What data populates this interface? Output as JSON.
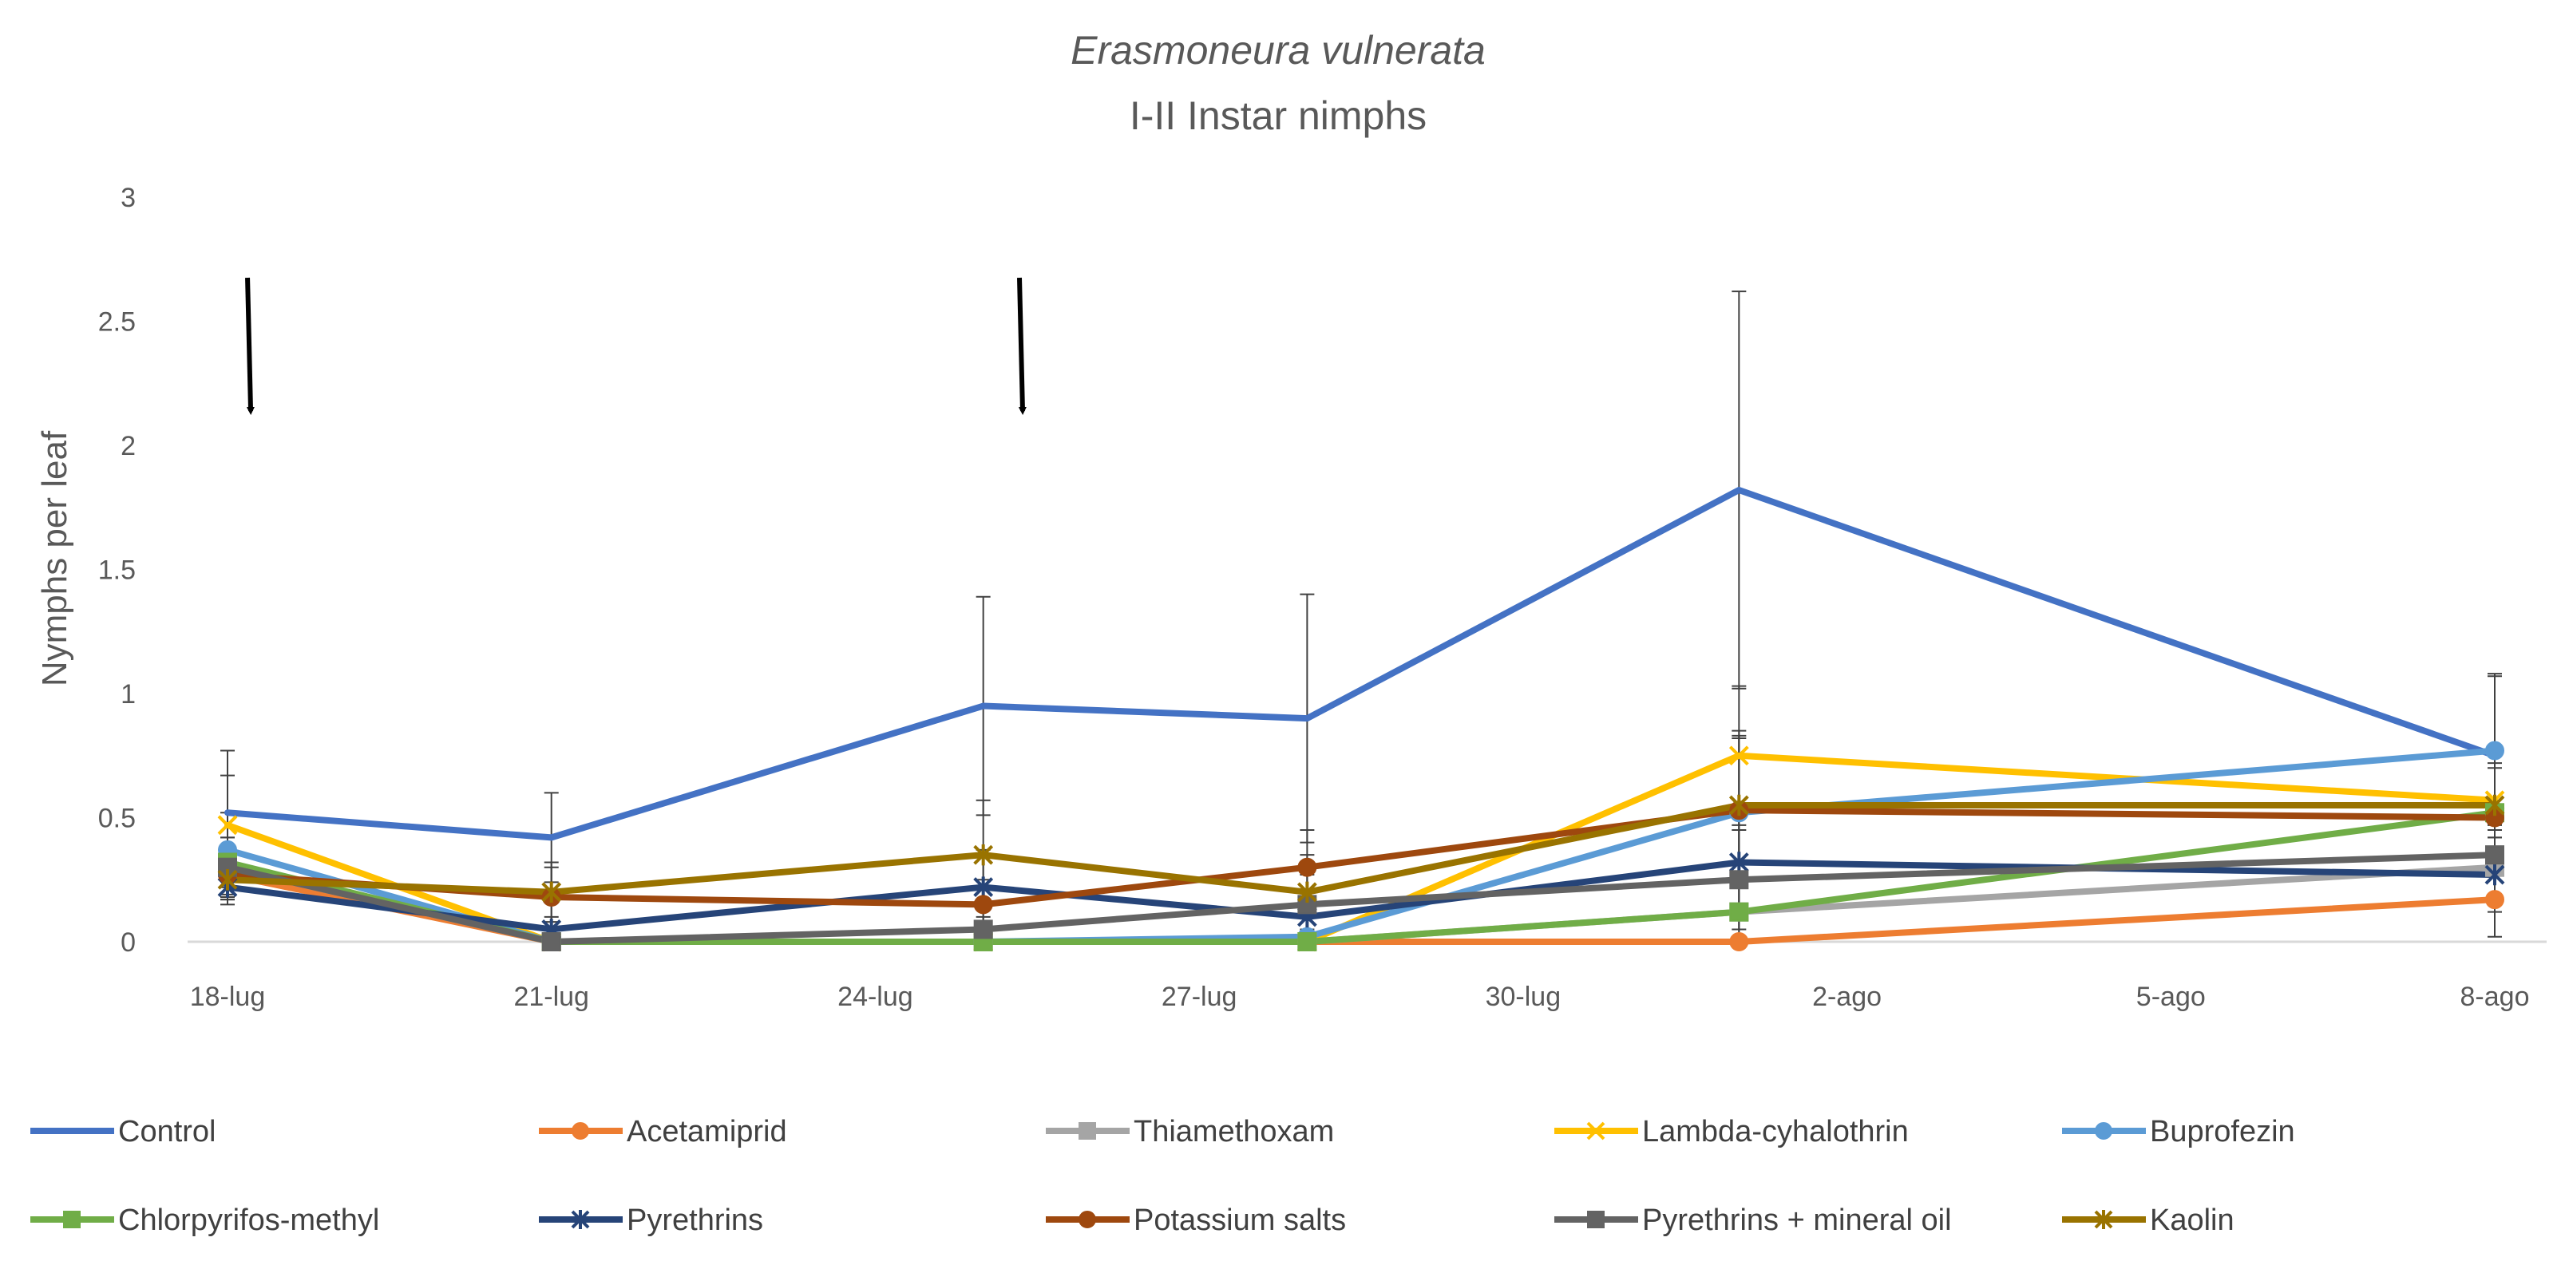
{
  "chart_data": {
    "type": "line",
    "title": "Erasmoneura vulnerata",
    "subtitle": "I-II Instar nimphs",
    "xlabel": "",
    "ylabel": "Nymphs per leaf",
    "ylim": [
      0,
      3
    ],
    "y_ticks": [
      0,
      0.5,
      1,
      1.5,
      2,
      2.5,
      3
    ],
    "y_tick_labels": [
      "0",
      "0.5",
      "1",
      "1.5",
      "2",
      "2.5",
      "3"
    ],
    "x_day_range": [
      0,
      21
    ],
    "x_ticks": [
      0,
      3,
      6,
      9,
      12,
      15,
      18,
      21
    ],
    "x_tick_labels": [
      "18-lug",
      "21-lug",
      "24-lug",
      "27-lug",
      "30-lug",
      "2-ago",
      "5-ago",
      "8-ago"
    ],
    "sample_days": [
      0,
      3,
      7,
      10,
      14,
      21
    ],
    "grid": false,
    "legend_position": "bottom",
    "treatment_arrow_days": [
      0.2,
      7.35
    ],
    "series": [
      {
        "name": "Control",
        "color": "#4472C4",
        "marker": "none",
        "values": [
          0.52,
          0.42,
          0.95,
          0.9,
          1.82,
          0.75
        ],
        "error": [
          0.25,
          0.18,
          0.44,
          0.5,
          0.8,
          0.33
        ]
      },
      {
        "name": "Acetamiprid",
        "color": "#ED7D31",
        "marker": "circle",
        "values": [
          0.27,
          0.0,
          0.0,
          0.0,
          0.0,
          0.17
        ],
        "error": [
          0.08,
          0.0,
          0.0,
          0.0,
          0.0,
          0.15
        ]
      },
      {
        "name": "Thiamethoxam",
        "color": "#A5A5A5",
        "marker": "square",
        "values": [
          0.3,
          0.0,
          0.0,
          0.0,
          0.12,
          0.3
        ],
        "error": [
          0.08,
          0.0,
          0.0,
          0.0,
          0.12,
          0.15
        ]
      },
      {
        "name": "Lambda-cyhalothrin",
        "color": "#FFC000",
        "marker": "x",
        "values": [
          0.47,
          0.0,
          0.0,
          0.0,
          0.75,
          0.57
        ],
        "error": [
          0.2,
          0.0,
          0.0,
          0.0,
          0.28,
          0.2
        ]
      },
      {
        "name": "Buprofezin",
        "color": "#5B9BD5",
        "marker": "circle",
        "values": [
          0.37,
          0.0,
          0.0,
          0.02,
          0.52,
          0.77
        ],
        "error": [
          0.15,
          0.0,
          0.0,
          0.02,
          0.3,
          0.3
        ]
      },
      {
        "name": "Chlorpyrifos-methyl",
        "color": "#70AD47",
        "marker": "square",
        "values": [
          0.32,
          0.0,
          0.0,
          0.0,
          0.12,
          0.52
        ],
        "error": [
          0.1,
          0.0,
          0.0,
          0.0,
          0.12,
          0.2
        ]
      },
      {
        "name": "Pyrethrins",
        "color": "#264478",
        "marker": "star",
        "values": [
          0.22,
          0.05,
          0.22,
          0.1,
          0.32,
          0.27
        ],
        "error": [
          0.07,
          0.05,
          0.15,
          0.1,
          0.2,
          0.15
        ]
      },
      {
        "name": "Potassium salts",
        "color": "#9E480E",
        "marker": "circle",
        "values": [
          0.27,
          0.18,
          0.15,
          0.3,
          0.53,
          0.5
        ],
        "error": [
          0.1,
          0.12,
          0.1,
          0.15,
          0.3,
          0.2
        ]
      },
      {
        "name": "Pyrethrins + mineral oil",
        "color": "#636363",
        "marker": "square",
        "values": [
          0.3,
          0.0,
          0.05,
          0.15,
          0.25,
          0.35
        ],
        "error": [
          0.12,
          0.0,
          0.05,
          0.12,
          0.2,
          0.2
        ]
      },
      {
        "name": "Kaolin",
        "color": "#997300",
        "marker": "star",
        "values": [
          0.25,
          0.2,
          0.35,
          0.2,
          0.55,
          0.55
        ],
        "error": [
          0.08,
          0.12,
          0.22,
          0.15,
          0.3,
          0.2
        ]
      }
    ]
  }
}
